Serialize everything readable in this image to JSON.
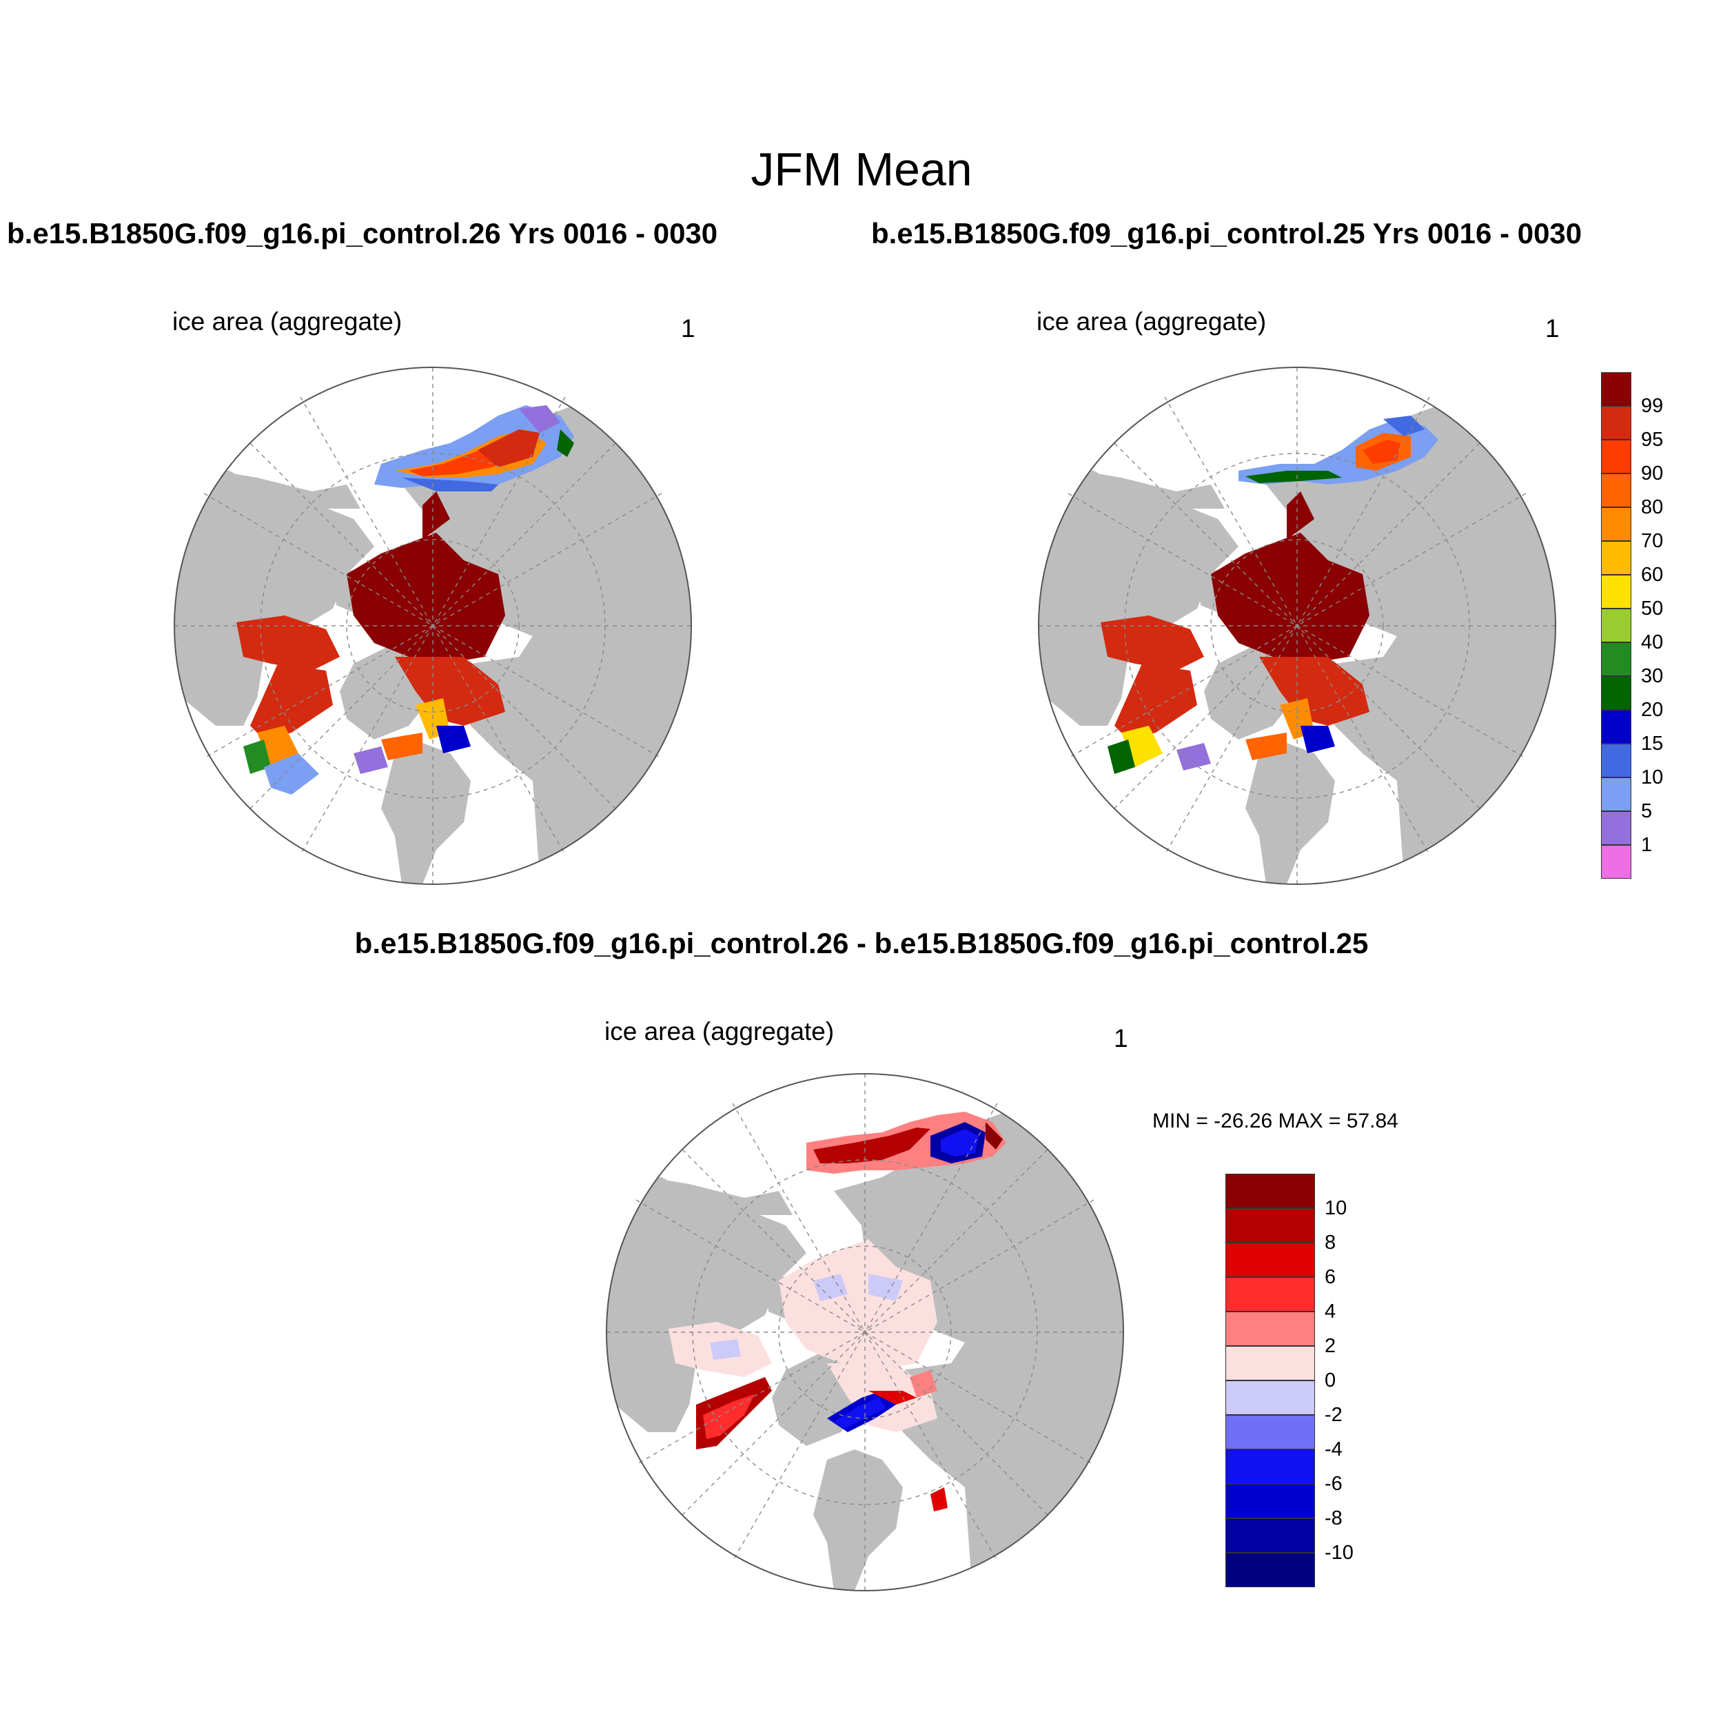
{
  "title": "JFM Mean",
  "panels": {
    "left": {
      "case_title": "b.e15.B1850G.f09_g16.pi_control.26  Yrs 0016 - 0030",
      "variable": "ice area  (aggregate)",
      "units": "1"
    },
    "right": {
      "case_title": "b.e15.B1850G.f09_g16.pi_control.25  Yrs 0016 - 0030",
      "variable": "ice area  (aggregate)",
      "units": "1"
    },
    "diff": {
      "title": "b.e15.B1850G.f09_g16.pi_control.26 - b.e15.B1850G.f09_g16.pi_control.25",
      "variable": "ice area  (aggregate)",
      "units": "1",
      "minmax": "MIN = -26.26 MAX =  57.84"
    }
  },
  "colors": {
    "land": "#bdbdbd",
    "ocean": "#ffffff",
    "ice_full": "#8b0000"
  },
  "legend_main": {
    "labels": [
      "99",
      "95",
      "90",
      "80",
      "70",
      "60",
      "50",
      "40",
      "30",
      "20",
      "15",
      "10",
      "5",
      "1"
    ],
    "colors": [
      "#8b0000",
      "#d42a10",
      "#ff3c00",
      "#ff6400",
      "#ff8c00",
      "#ffbb00",
      "#ffe100",
      "#9acd32",
      "#228b22",
      "#006400",
      "#0000cd",
      "#4169e1",
      "#7b9ff2",
      "#9370db",
      "#ee6ee4"
    ]
  },
  "legend_diff": {
    "labels": [
      "10",
      "8",
      "6",
      "4",
      "2",
      "0",
      "-2",
      "-4",
      "-6",
      "-8",
      "-10"
    ],
    "colors": [
      "#8b0000",
      "#b40000",
      "#e00000",
      "#ff2d2d",
      "#ff8080",
      "#fce0e0",
      "#cccaf7",
      "#7070f7",
      "#1010f0",
      "#0000cf",
      "#0000a3",
      "#000080"
    ]
  }
}
